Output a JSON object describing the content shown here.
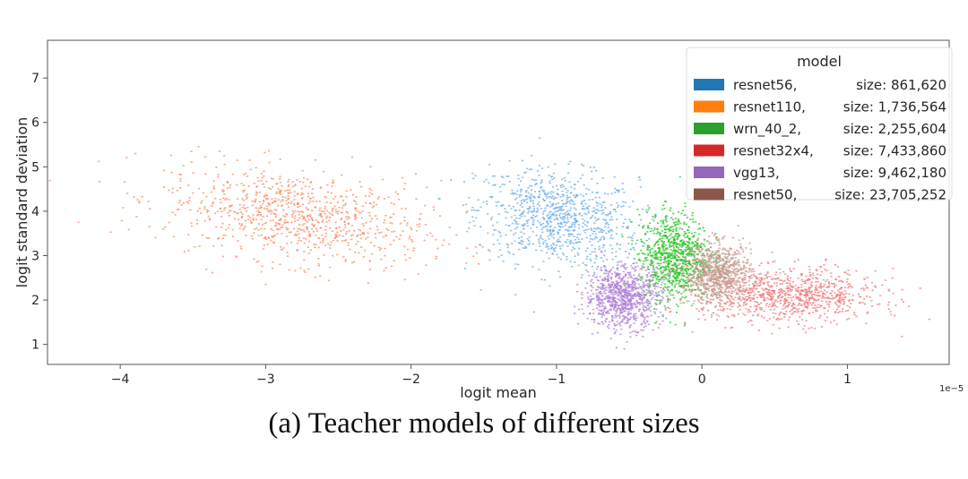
{
  "caption": "(a) Teacher models of different sizes",
  "chart_data": {
    "type": "scatter",
    "xlabel": "logit mean",
    "ylabel": "logit standard deviation",
    "x_exponent_label": "1e−5",
    "xlim": [
      -4.5,
      1.7
    ],
    "ylim": [
      0.55,
      7.85
    ],
    "x_ticks": [
      -4,
      -3,
      -2,
      -1,
      0,
      1
    ],
    "x_tick_labels": [
      "−4",
      "−3",
      "−2",
      "−1",
      "0",
      "1"
    ],
    "y_ticks": [
      1,
      2,
      3,
      4,
      5,
      6,
      7
    ],
    "y_tick_labels": [
      "1",
      "2",
      "3",
      "4",
      "5",
      "6",
      "7"
    ],
    "grid": false,
    "legend": {
      "title": "model",
      "placement": "top-right",
      "entries": [
        {
          "name": "resnet56,",
          "size_text": "size: 861,620",
          "color": "#1f77b4"
        },
        {
          "name": "resnet110,",
          "size_text": "size: 1,736,564",
          "color": "#ff7f0e"
        },
        {
          "name": "wrn_40_2,",
          "size_text": "size: 2,255,604",
          "color": "#2ca02c"
        },
        {
          "name": "resnet32x4,",
          "size_text": "size: 7,433,860",
          "color": "#d62728"
        },
        {
          "name": "vgg13,",
          "size_text": "size: 9,462,180",
          "color": "#9467bd"
        },
        {
          "name": "resnet50,",
          "size_text": "size: 23,705,252",
          "color": "#8c564b"
        }
      ]
    },
    "series": [
      {
        "name": "resnet56",
        "color": "#6aaee8",
        "center": [
          -1.0,
          3.85
        ],
        "spread": [
          0.28,
          0.55
        ]
      },
      {
        "name": "resnet110",
        "color": "#f98a5e",
        "center": [
          -2.8,
          3.9
        ],
        "spread": [
          0.45,
          0.55
        ]
      },
      {
        "name": "wrn_40_2",
        "color": "#22c41f",
        "center": [
          -0.2,
          3.0
        ],
        "spread": [
          0.12,
          0.5
        ]
      },
      {
        "name": "resnet32x4",
        "color": "#f2787a",
        "center": [
          0.6,
          2.1
        ],
        "spread": [
          0.3,
          0.3
        ]
      },
      {
        "name": "vgg13",
        "color": "#b07fd8",
        "center": [
          -0.55,
          2.1
        ],
        "spread": [
          0.13,
          0.35
        ]
      },
      {
        "name": "resnet50",
        "color": "#c69a90",
        "center": [
          0.1,
          2.6
        ],
        "spread": [
          0.12,
          0.33
        ]
      }
    ]
  }
}
